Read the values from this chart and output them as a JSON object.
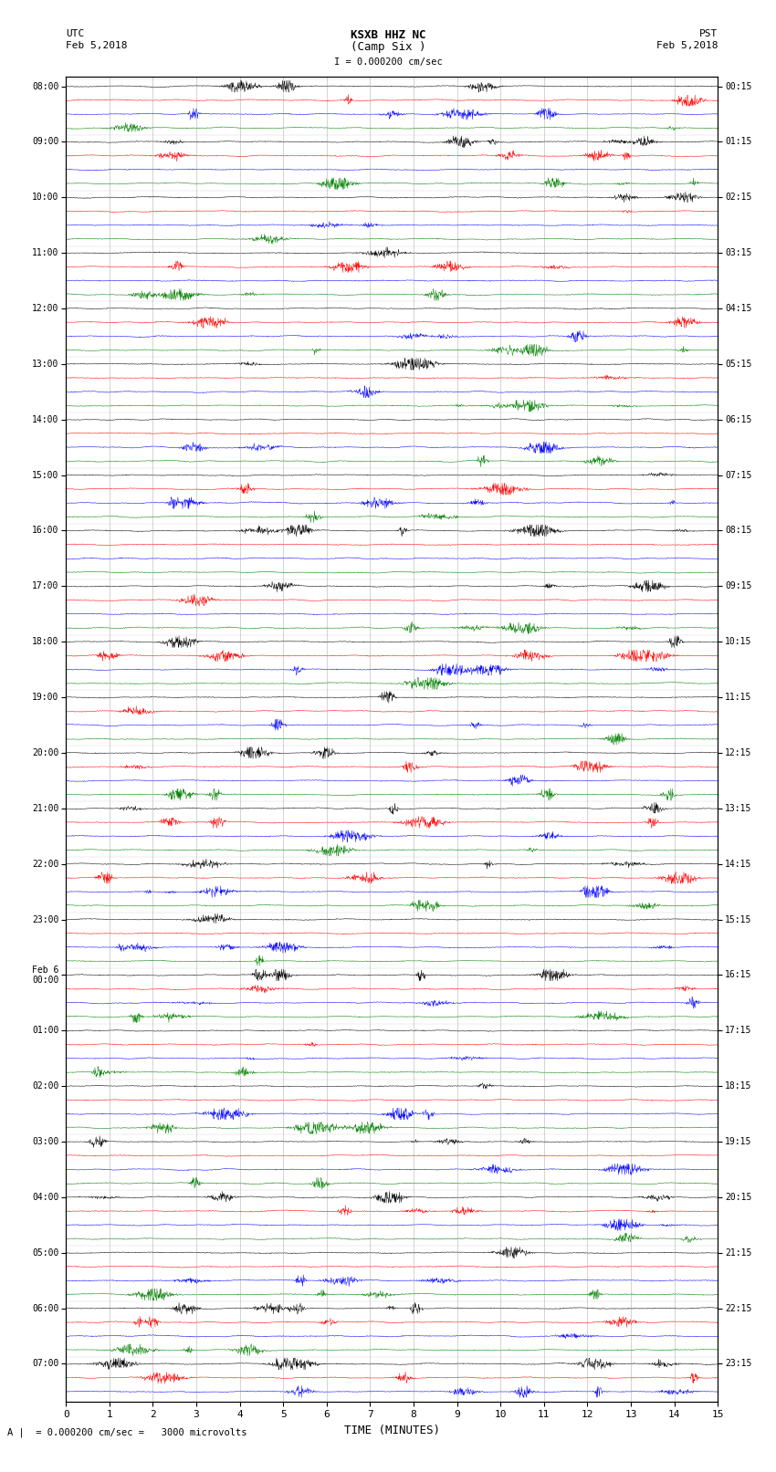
{
  "title_line1": "KSXB HHZ NC",
  "title_line2": "(Camp Six )",
  "label_utc": "UTC",
  "label_pst": "PST",
  "date_left": "Feb 5,2018",
  "date_right": "Feb 5,2018",
  "scale_label": "= 0.000200 cm/sec =   3000 microvolts",
  "scale_marker": "= 0.000200 cm/sec",
  "xlabel": "TIME (MINUTES)",
  "trace_colors": [
    "black",
    "red",
    "blue",
    "green"
  ],
  "minutes_per_trace": 15,
  "x_ticks": [
    0,
    1,
    2,
    3,
    4,
    5,
    6,
    7,
    8,
    9,
    10,
    11,
    12,
    13,
    14,
    15
  ],
  "left_times_utc": [
    "08:00",
    "",
    "",
    "",
    "09:00",
    "",
    "",
    "",
    "10:00",
    "",
    "",
    "",
    "11:00",
    "",
    "",
    "",
    "12:00",
    "",
    "",
    "",
    "13:00",
    "",
    "",
    "",
    "14:00",
    "",
    "",
    "",
    "15:00",
    "",
    "",
    "",
    "16:00",
    "",
    "",
    "",
    "17:00",
    "",
    "",
    "",
    "18:00",
    "",
    "",
    "",
    "19:00",
    "",
    "",
    "",
    "20:00",
    "",
    "",
    "",
    "21:00",
    "",
    "",
    "",
    "22:00",
    "",
    "",
    "",
    "23:00",
    "",
    "",
    "",
    "Feb 6\n00:00",
    "",
    "",
    "",
    "01:00",
    "",
    "",
    "",
    "02:00",
    "",
    "",
    "",
    "03:00",
    "",
    "",
    "",
    "04:00",
    "",
    "",
    "",
    "05:00",
    "",
    "",
    "",
    "06:00",
    "",
    "",
    "",
    "07:00",
    "",
    ""
  ],
  "right_times_pst": [
    "00:15",
    "",
    "",
    "",
    "01:15",
    "",
    "",
    "",
    "02:15",
    "",
    "",
    "",
    "03:15",
    "",
    "",
    "",
    "04:15",
    "",
    "",
    "",
    "05:15",
    "",
    "",
    "",
    "06:15",
    "",
    "",
    "",
    "07:15",
    "",
    "",
    "",
    "08:15",
    "",
    "",
    "",
    "09:15",
    "",
    "",
    "",
    "10:15",
    "",
    "",
    "",
    "11:15",
    "",
    "",
    "",
    "12:15",
    "",
    "",
    "",
    "13:15",
    "",
    "",
    "",
    "14:15",
    "",
    "",
    "",
    "15:15",
    "",
    "",
    "",
    "16:15",
    "",
    "",
    "",
    "17:15",
    "",
    "",
    "",
    "18:15",
    "",
    "",
    "",
    "19:15",
    "",
    "",
    "",
    "20:15",
    "",
    "",
    "",
    "21:15",
    "",
    "",
    "",
    "22:15",
    "",
    "",
    "",
    "23:15",
    "",
    ""
  ],
  "fig_width": 8.5,
  "fig_height": 16.13,
  "dpi": 100,
  "background_color": "white"
}
